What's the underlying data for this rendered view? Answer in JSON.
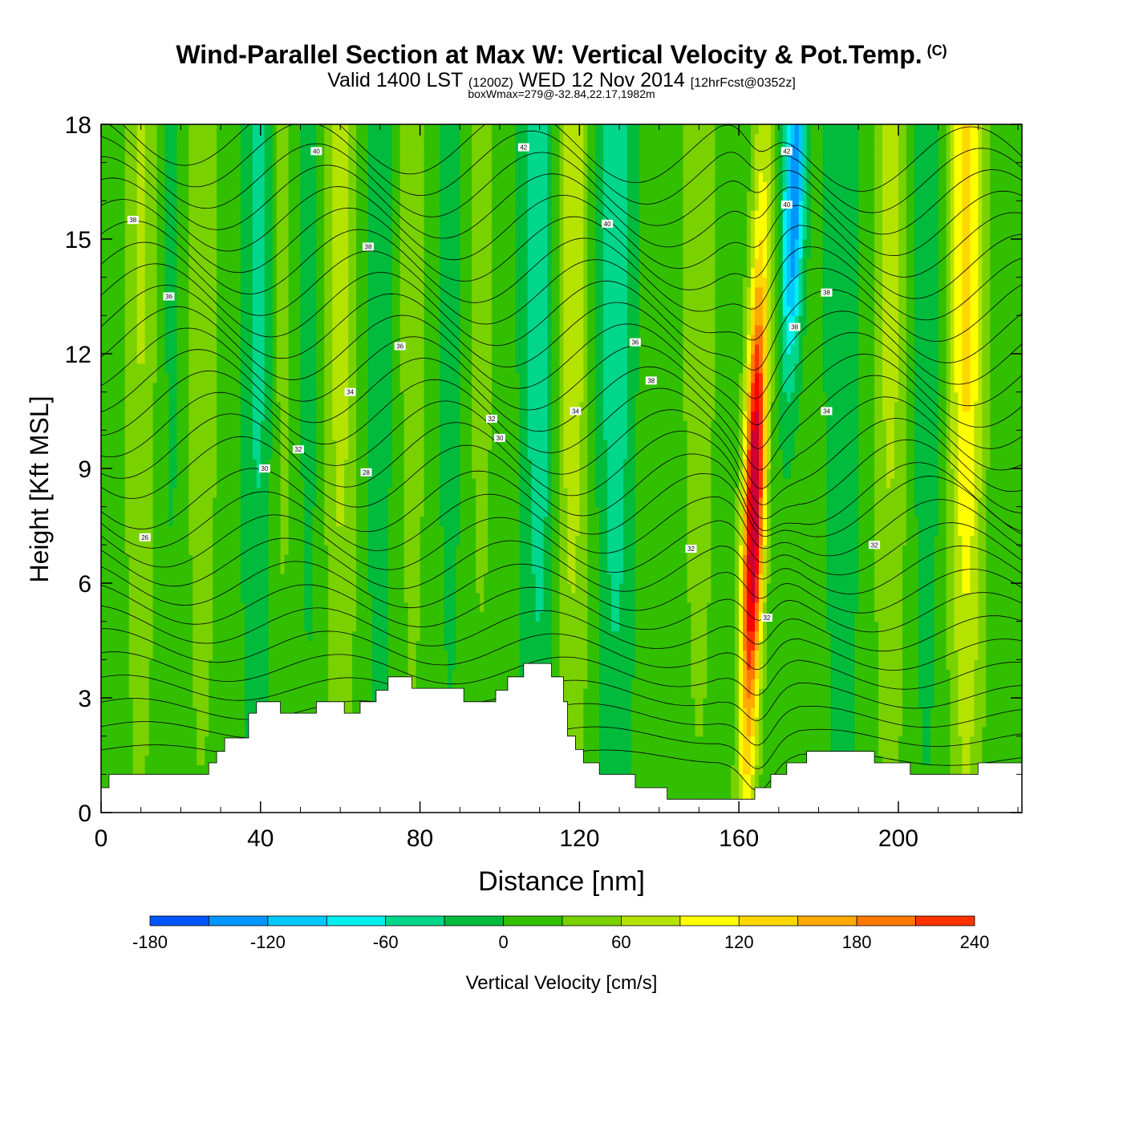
{
  "title": {
    "main": "Wind-Parallel Section at Max W: Vertical Velocity & Pot.Temp.",
    "copyright": "(C)",
    "valid_a": "Valid 1400 LST",
    "valid_z": "(1200Z)",
    "valid_b": "WED 12 Nov 2014",
    "fcst": "[12hrFcst@0352z]",
    "note": "boxWmax=279@-32.84,22.17,1982m"
  },
  "colors": {
    "bins": [
      "#0000ff",
      "#0055ff",
      "#0095ff",
      "#00c8ff",
      "#00f0f0",
      "#00d68c",
      "#00bb3c",
      "#32bf00",
      "#7ad100",
      "#b5e300",
      "#ffff00",
      "#ffd700",
      "#ffaa00",
      "#ff7800",
      "#ff3200",
      "#ff0000",
      "#cc0033"
    ],
    "terrain": "#ffffff",
    "contour": "#000000"
  },
  "chart_data": {
    "type": "heatmap",
    "xlabel": "Distance [nm]",
    "ylabel": "Height [Kft MSL]",
    "xlim": [
      0,
      231
    ],
    "ylim": [
      0,
      18
    ],
    "x_ticks": [
      0,
      40,
      80,
      120,
      160,
      200
    ],
    "y_ticks": [
      0,
      3,
      6,
      9,
      12,
      15,
      18
    ],
    "colorbar": {
      "label": "Vertical Velocity [cm/s]",
      "boundaries": [
        -180,
        -150,
        -120,
        -90,
        -60,
        -30,
        0,
        30,
        60,
        90,
        120,
        150,
        180,
        210,
        240
      ],
      "tick_values": [
        -180,
        -120,
        -60,
        0,
        60,
        120,
        180,
        240
      ],
      "tick_labels": [
        "-180",
        "-120",
        "-60",
        "0",
        "60",
        "120",
        "180",
        "240"
      ]
    },
    "terrain_kft": [
      [
        0,
        0.65
      ],
      [
        2,
        1.0
      ],
      [
        26,
        1.0
      ],
      [
        27,
        1.3
      ],
      [
        29,
        1.6
      ],
      [
        31,
        1.95
      ],
      [
        37,
        2.6
      ],
      [
        39,
        2.9
      ],
      [
        45,
        2.6
      ],
      [
        54,
        2.9
      ],
      [
        61,
        2.6
      ],
      [
        65,
        2.9
      ],
      [
        69,
        3.2
      ],
      [
        72,
        3.55
      ],
      [
        78,
        3.25
      ],
      [
        91,
        2.9
      ],
      [
        99,
        3.2
      ],
      [
        102,
        3.55
      ],
      [
        106,
        3.9
      ],
      [
        113,
        3.55
      ],
      [
        116,
        2.9
      ],
      [
        117,
        2.0
      ],
      [
        119,
        1.65
      ],
      [
        121,
        1.3
      ],
      [
        125,
        1.0
      ],
      [
        134,
        0.65
      ],
      [
        142,
        0.35
      ],
      [
        164,
        0.65
      ],
      [
        168,
        1.0
      ],
      [
        172,
        1.3
      ],
      [
        177,
        1.6
      ],
      [
        194,
        1.3
      ],
      [
        203,
        1.0
      ],
      [
        220,
        1.3
      ],
      [
        231,
        1.3
      ]
    ],
    "updraft_bands": [
      {
        "x": 10,
        "w": 50
      },
      {
        "x": 25,
        "w": 45
      },
      {
        "x": 45,
        "w": 40
      },
      {
        "x": 60,
        "w": 65
      },
      {
        "x": 78,
        "w": 35
      },
      {
        "x": 95,
        "w": 30
      },
      {
        "x": 118,
        "w": 75
      },
      {
        "x": 150,
        "w": 40
      },
      {
        "x": 164,
        "w": 245
      },
      {
        "x": 198,
        "w": 60
      },
      {
        "x": 217,
        "w": 120
      }
    ],
    "downdraft_bands": [
      {
        "x": 18,
        "w": -20
      },
      {
        "x": 40,
        "w": -60
      },
      {
        "x": 52,
        "w": -25
      },
      {
        "x": 70,
        "w": -30
      },
      {
        "x": 88,
        "w": -25
      },
      {
        "x": 110,
        "w": -70
      },
      {
        "x": 129,
        "w": -70
      },
      {
        "x": 172,
        "w": -160
      },
      {
        "x": 186,
        "w": -40
      },
      {
        "x": 207,
        "w": -30
      }
    ],
    "max_vertical_velocity_cm_s": 279,
    "theta_contour_labels": [
      {
        "text": "26",
        "x": 11,
        "y": 7.2
      },
      {
        "text": "28",
        "x": 66.5,
        "y": 8.9
      },
      {
        "text": "30",
        "x": 41,
        "y": 9.0
      },
      {
        "text": "30",
        "x": 100,
        "y": 9.8
      },
      {
        "text": "32",
        "x": 49.5,
        "y": 9.5
      },
      {
        "text": "32",
        "x": 98,
        "y": 10.3
      },
      {
        "text": "32",
        "x": 148,
        "y": 6.9
      },
      {
        "text": "32",
        "x": 167,
        "y": 5.1
      },
      {
        "text": "32",
        "x": 194,
        "y": 7.0
      },
      {
        "text": "34",
        "x": 62.5,
        "y": 11.0
      },
      {
        "text": "34",
        "x": 119,
        "y": 10.5
      },
      {
        "text": "34",
        "x": 182,
        "y": 10.5
      },
      {
        "text": "36",
        "x": 17,
        "y": 13.5
      },
      {
        "text": "36",
        "x": 75,
        "y": 12.2
      },
      {
        "text": "36",
        "x": 134,
        "y": 12.3
      },
      {
        "text": "38",
        "x": 8,
        "y": 15.5
      },
      {
        "text": "38",
        "x": 67,
        "y": 14.8
      },
      {
        "text": "38",
        "x": 138,
        "y": 11.3
      },
      {
        "text": "38",
        "x": 174,
        "y": 12.7
      },
      {
        "text": "38",
        "x": 182,
        "y": 13.6
      },
      {
        "text": "40",
        "x": 54,
        "y": 17.3
      },
      {
        "text": "40",
        "x": 127,
        "y": 15.4
      },
      {
        "text": "40",
        "x": 172,
        "y": 15.9
      },
      {
        "text": "42",
        "x": 106,
        "y": 17.4
      },
      {
        "text": "42",
        "x": 172,
        "y": 17.3
      }
    ]
  }
}
